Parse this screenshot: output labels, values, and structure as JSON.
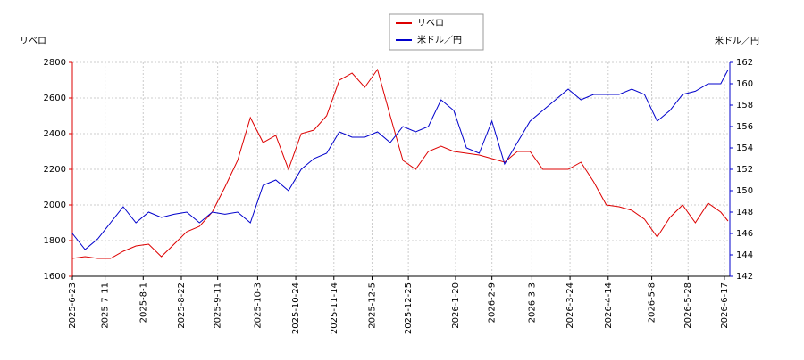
{
  "chart_data": {
    "type": "line",
    "y_label": "リベロ",
    "y2_label": "米ドル／円",
    "x": [
      "2025-6-23",
      "2025-6-30",
      "2025-7-7",
      "2025-7-14",
      "2025-7-21",
      "2025-7-28",
      "2025-8-4",
      "2025-8-11",
      "2025-8-18",
      "2025-8-25",
      "2025-9-1",
      "2025-9-8",
      "2025-9-15",
      "2025-9-22",
      "2025-9-29",
      "2025-10-6",
      "2025-10-13",
      "2025-10-20",
      "2025-10-27",
      "2025-11-3",
      "2025-11-10",
      "2025-11-17",
      "2025-11-24",
      "2025-12-1",
      "2025-12-8",
      "2025-12-15",
      "2025-12-22",
      "2025-12-29",
      "2026-1-5",
      "2026-1-12",
      "2026-1-19",
      "2026-1-26",
      "2026-2-2",
      "2026-2-9",
      "2026-2-16",
      "2026-2-23",
      "2026-3-2",
      "2026-3-9",
      "2026-3-16",
      "2026-3-23",
      "2026-3-30",
      "2026-4-6",
      "2026-4-13",
      "2026-4-20",
      "2026-4-27",
      "2026-5-4",
      "2026-5-11",
      "2026-5-18",
      "2026-5-25",
      "2026-6-1",
      "2026-6-8",
      "2026-6-15",
      "2026-6-19"
    ],
    "series": [
      {
        "name": "リベロ",
        "color": "#dd0000",
        "axis": "y",
        "values": [
          1700,
          1710,
          1700,
          1700,
          1740,
          1770,
          1780,
          1710,
          1780,
          1850,
          1880,
          1960,
          2100,
          2250,
          2490,
          2350,
          2390,
          2200,
          2400,
          2420,
          2500,
          2700,
          2740,
          2660,
          2760,
          2500,
          2250,
          2200,
          2300,
          2330,
          2300,
          2290,
          2280,
          2260,
          2240,
          2300,
          2300,
          2200,
          2200,
          2200,
          2240,
          2130,
          2000,
          1990,
          1970,
          1920,
          1820,
          1930,
          2000,
          1900,
          2010,
          1960,
          1910
        ]
      },
      {
        "name": "米ドル／円",
        "color": "#0000cc",
        "axis": "y2",
        "values": [
          146,
          144.5,
          145.5,
          147,
          148.5,
          147,
          148,
          147.5,
          147.8,
          148,
          147,
          148,
          147.8,
          148,
          147,
          150.5,
          151,
          150,
          152,
          153,
          153.5,
          155.5,
          155,
          155,
          155.5,
          154.5,
          156,
          155.5,
          156,
          158.5,
          157.5,
          154,
          153.5,
          156.5,
          152.5,
          154.5,
          156.5,
          157.5,
          158.5,
          159.5,
          158.5,
          159,
          159,
          159,
          159.5,
          159,
          156.5,
          157.5,
          159,
          159.3,
          160,
          160,
          161.3
        ]
      }
    ],
    "xlim": [
      "2025-6-23",
      "2026-6-20"
    ],
    "xticks": [
      "2025-6-23",
      "2025-7-11",
      "2025-8-1",
      "2025-8-22",
      "2025-9-11",
      "2025-10-3",
      "2025-10-24",
      "2025-11-14",
      "2025-12-5",
      "2025-12-25",
      "2026-1-20",
      "2026-2-9",
      "2026-3-3",
      "2026-3-24",
      "2026-4-14",
      "2026-5-8",
      "2026-5-28",
      "2026-6-17"
    ],
    "ylim": [
      1600,
      2800
    ],
    "yticks": [
      1600,
      1800,
      2000,
      2200,
      2400,
      2600,
      2800
    ],
    "y2lim": [
      142,
      162
    ],
    "y2ticks": [
      142,
      144,
      146,
      148,
      150,
      152,
      154,
      156,
      158,
      160,
      162
    ],
    "grid": true
  }
}
